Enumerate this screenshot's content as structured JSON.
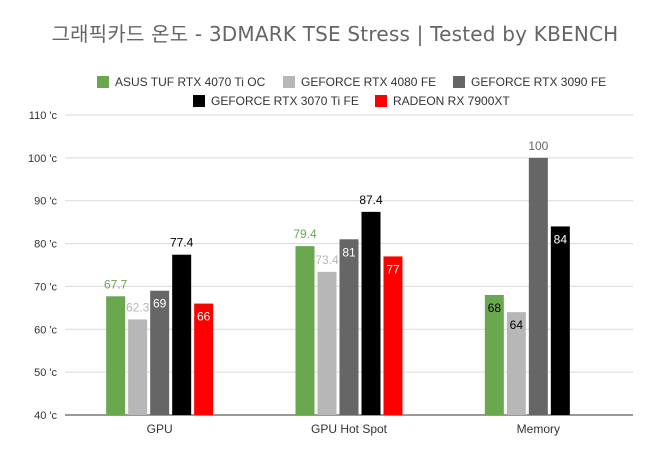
{
  "chart_data": {
    "type": "bar",
    "title": "그래픽카드 온도 - 3DMARK TSE Stress  | Tested by KBENCH",
    "xlabel": "",
    "ylabel": "",
    "ylim": [
      40,
      110
    ],
    "y_ticks": [
      40,
      50,
      60,
      70,
      80,
      90,
      100,
      110
    ],
    "y_tick_suffix": " 'c",
    "grid": "horizontal",
    "legend_position": "top",
    "categories": [
      "GPU",
      "GPU Hot Spot",
      "Memory"
    ],
    "series": [
      {
        "name": "ASUS TUF RTX 4070 Ti OC",
        "color": "#6aa84f",
        "label_color": "#6aa84f",
        "label_position": "above",
        "values": [
          67.7,
          79.4,
          68
        ],
        "labels": [
          "67.7",
          "79.4",
          "68"
        ],
        "label_positions": [
          "above",
          "above",
          "inside"
        ],
        "label_colors": [
          "#6aa84f",
          "#6aa84f",
          "#000000"
        ]
      },
      {
        "name": "GEFORCE RTX 4080 FE",
        "color": "#b7b7b7",
        "values": [
          62.3,
          73.4,
          64
        ],
        "labels": [
          "62.3",
          "73.4",
          "64"
        ],
        "label_positions": [
          "above",
          "above",
          "inside"
        ],
        "label_colors": [
          "#b7b7b7",
          "#b7b7b7",
          "#000000"
        ]
      },
      {
        "name": "GEFORCE RTX 3090 FE",
        "color": "#666666",
        "values": [
          69,
          81,
          100
        ],
        "labels": [
          "69",
          "81",
          "100"
        ],
        "label_positions": [
          "inside",
          "inside",
          "above"
        ],
        "label_colors": [
          "#ffffff",
          "#ffffff",
          "#666666"
        ]
      },
      {
        "name": "GEFORCE RTX 3070 Ti FE",
        "color": "#000000",
        "values": [
          77.4,
          87.4,
          84
        ],
        "labels": [
          "77.4",
          "87.4",
          "84"
        ],
        "label_positions": [
          "above",
          "above",
          "inside"
        ],
        "label_colors": [
          "#000000",
          "#000000",
          "#ffffff"
        ]
      },
      {
        "name": "RADEON RX 7900XT",
        "color": "#ff0000",
        "values": [
          66,
          77,
          null
        ],
        "labels": [
          "66",
          "77",
          ""
        ],
        "label_positions": [
          "inside",
          "inside",
          "inside"
        ],
        "label_colors": [
          "#ffffff",
          "#ffffff",
          "#ffffff"
        ]
      }
    ]
  }
}
